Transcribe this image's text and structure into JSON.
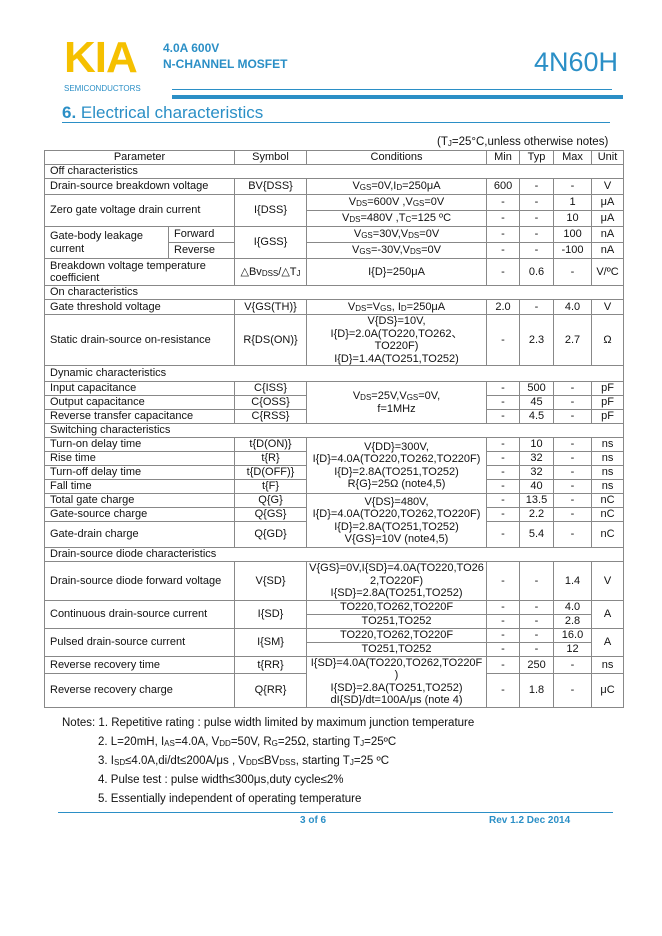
{
  "header": {
    "logo": "KIA",
    "logo_sub": "SEMICONDUCTORS",
    "line1": "4.0A 600V",
    "line2": "N-CHANNEL MOSFET",
    "part": "4N60H",
    "brand_color": "#2b8fc6",
    "logo_color": "#f5c000"
  },
  "section": {
    "num": "6.",
    "title": "Electrical characteristics"
  },
  "condition_note": "(T{J}=25°C,unless otherwise notes)",
  "table": {
    "headers": [
      "Parameter",
      "Symbol",
      "Conditions",
      "Min",
      "Typ",
      "Max",
      "Unit"
    ],
    "off": "Off characteristics",
    "bvdss": [
      "Drain-source breakdown voltage",
      "BV{DSS}",
      "V{GS}=0V,I{D}=250μA",
      "600",
      "-",
      "-",
      "V"
    ],
    "idss": {
      "p": "Zero gate voltage drain current",
      "s": "I{DSS}",
      "r1": [
        "V{DS}=600V ,V{GS}=0V",
        "-",
        "-",
        "1",
        "μA"
      ],
      "r2": [
        "V{DS}=480V ,T{C}=125 ºC",
        "-",
        "-",
        "10",
        "μA"
      ]
    },
    "igss": {
      "p": "Gate-body leakage current",
      "s": "I{GSS}",
      "r1": [
        "Forward",
        "V{GS}=30V,V{DS}=0V",
        "-",
        "-",
        "100",
        "nA"
      ],
      "r2": [
        "Reverse",
        "V{GS}=-30V,V{DS}=0V",
        "-",
        "-",
        "-100",
        "nA"
      ]
    },
    "bvt": [
      "Breakdown voltage temperature coefficient",
      "△Bv{DSS}/△T{J}",
      "I{D}=250μA",
      "-",
      "0.6",
      "-",
      "V/ºC"
    ],
    "on": "On characteristics",
    "vth": [
      "Gate threshold voltage",
      "V{GS(TH)}",
      "V{DS}=V{GS}, I{D}=250μA",
      "2.0",
      "-",
      "4.0",
      "V"
    ],
    "rds": [
      "Static drain-source on-resistance",
      "R{DS(ON)}",
      "V{DS}=10V,\nI{D}=2.0A(TO220,TO262、TO220F)\nI{D}=1.4A(TO251,TO252)",
      "-",
      "2.3",
      "2.7",
      "Ω"
    ],
    "dyn": "Dynamic characteristics",
    "cap_cond": "V{DS}=25V,V{GS}=0V,\nf=1MHz",
    "ciss": [
      "Input capacitance",
      "C{ISS}",
      "-",
      "500",
      "-",
      "pF"
    ],
    "coss": [
      "Output capacitance",
      "C{OSS}",
      "-",
      "45",
      "-",
      "pF"
    ],
    "crss": [
      "Reverse transfer capacitance",
      "C{RSS}",
      "-",
      "4.5",
      "-",
      "pF"
    ],
    "sw": "Switching characteristics",
    "sw_cond": "V{DD}=300V,\nI{D}=4.0A(TO220,TO262,TO220F)\nI{D}=2.8A(TO251,TO252)\nR{G}=25Ω (note4,5)",
    "ton": [
      "Turn-on delay time",
      "t{D(ON)}",
      "-",
      "10",
      "-",
      "ns"
    ],
    "tr": [
      "Rise time",
      "t{R}",
      "-",
      "32",
      "-",
      "ns"
    ],
    "toff": [
      "Turn-off delay time",
      "t{D(OFF)}",
      "-",
      "32",
      "-",
      "ns"
    ],
    "tf": [
      "Fall time",
      "t{F}",
      "-",
      "40",
      "-",
      "ns"
    ],
    "q_cond": "V{DS}=480V,\nI{D}=4.0A(TO220,TO262,TO220F)\nI{D}=2.8A(TO251,TO252)\nV{GS}=10V (note4,5)",
    "qg": [
      "Total gate charge",
      "Q{G}",
      "-",
      "13.5",
      "-",
      "nC"
    ],
    "qgs": [
      "Gate-source charge",
      "Q{GS}",
      "-",
      "2.2",
      "-",
      "nC"
    ],
    "qgd": [
      "Gate-drain charge",
      "Q{GD}",
      "-",
      "5.4",
      "-",
      "nC"
    ],
    "diode": "Drain-source diode characteristics",
    "vsd": [
      "Drain-source diode forward voltage",
      "V{SD}",
      "V{GS}=0V,I{SD}=4.0A(TO220,TO262,TO220F)\nI{SD}=2.8A(TO251,TO252)",
      "-",
      "-",
      "1.4",
      "V"
    ],
    "isd": {
      "p": "Continuous drain-source current",
      "s": "I{SD}",
      "u": "A",
      "r1": [
        "TO220,TO262,TO220F",
        "-",
        "-",
        "4.0"
      ],
      "r2": [
        "TO251,TO252",
        "-",
        "-",
        "2.8"
      ]
    },
    "ism": {
      "p": "Pulsed drain-source current",
      "s": "I{SM}",
      "u": "A",
      "r1": [
        "TO220,TO262,TO220F",
        "-",
        "-",
        "16.0"
      ],
      "r2": [
        "TO251,TO252",
        "-",
        "-",
        "12"
      ]
    },
    "rr_cond": "I{SD}=4.0A(TO220,TO262,TO220F)\nI{SD}=2.8A(TO251,TO252)\ndI{SD}/dt=100A/μs (note 4)",
    "trr": [
      "Reverse recovery time",
      "t{RR}",
      "-",
      "250",
      "-",
      "ns"
    ],
    "qrr": [
      "Reverse recovery charge",
      "Q{RR}",
      "-",
      "1.8",
      "-",
      "μC"
    ]
  },
  "notes": [
    "Notes: 1. Repetitive rating : pulse width limited by maximum junction temperature",
    "2. L=20mH, I{AS}=4.0A, V{DD}=50V, R{G}=25Ω, starting T{J}=25ºC",
    "3. I{SD}≤4.0A,di/dt≤200A/μs , V{DD}≤BV{DSS}, starting T{J}=25 ºC",
    "4. Pulse test : pulse width≤300μs,duty cycle≤2%",
    "5. Essentially independent of operating temperature"
  ],
  "footer": {
    "page": "3 of 6",
    "rev": "Rev 1.2 Dec 2014"
  }
}
